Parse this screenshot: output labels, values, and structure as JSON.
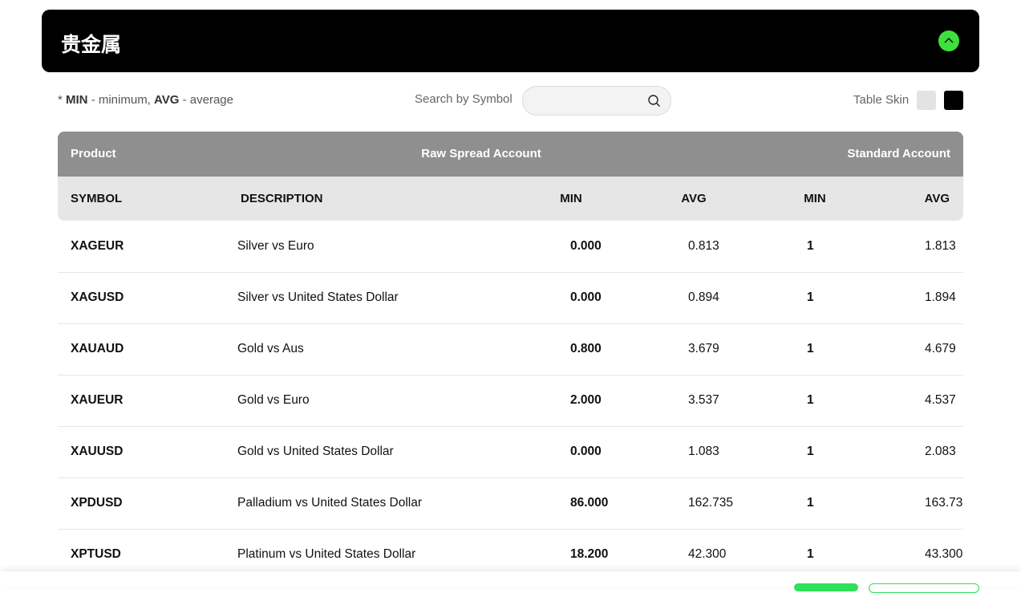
{
  "header": {
    "title": "贵金属"
  },
  "legend": {
    "prefix": "*",
    "items": [
      {
        "term": "MIN",
        "text": "- minimum,"
      },
      {
        "term": "AVG",
        "text": "- average"
      }
    ]
  },
  "search": {
    "label": "Search by Symbol"
  },
  "skin": {
    "label": "Table Skin"
  },
  "table": {
    "group_headers": [
      "Product",
      "Raw Spread Account",
      "Standard Account"
    ],
    "columns": [
      "SYMBOL",
      "DESCRIPTION",
      "MIN",
      "AVG",
      "MIN",
      "AVG"
    ],
    "rows": [
      [
        "XAGEUR",
        "Silver vs Euro",
        "0.000",
        "0.813",
        "1",
        "1.813"
      ],
      [
        "XAGUSD",
        "Silver vs United States Dollar",
        "0.000",
        "0.894",
        "1",
        "1.894"
      ],
      [
        "XAUAUD",
        "Gold vs Aus",
        "0.800",
        "3.679",
        "1",
        "4.679"
      ],
      [
        "XAUEUR",
        "Gold vs Euro",
        "2.000",
        "3.537",
        "1",
        "4.537"
      ],
      [
        "XAUUSD",
        "Gold vs United States Dollar",
        "0.000",
        "1.083",
        "1",
        "2.083"
      ],
      [
        "XPDUSD",
        "Palladium vs United States Dollar",
        "86.000",
        "162.735",
        "1",
        "163.73"
      ],
      [
        "XPTUSD",
        "Platinum vs United States Dollar",
        "18.200",
        "42.300",
        "1",
        "43.300"
      ]
    ]
  }
}
